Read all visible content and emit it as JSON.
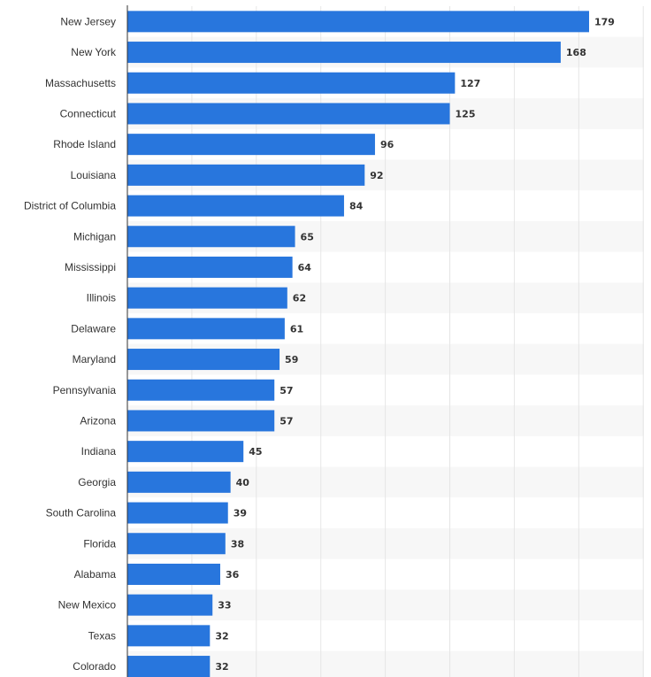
{
  "chart_data": {
    "type": "bar",
    "orientation": "horizontal",
    "title": "",
    "xlabel": "",
    "ylabel": "",
    "xlim": [
      0,
      200
    ],
    "grid": true,
    "categories": [
      "New Jersey",
      "New York",
      "Massachusetts",
      "Connecticut",
      "Rhode Island",
      "Louisiana",
      "District of Columbia",
      "Michigan",
      "Mississippi",
      "Illinois",
      "Delaware",
      "Maryland",
      "Pennsylvania",
      "Arizona",
      "Indiana",
      "Georgia",
      "South Carolina",
      "Florida",
      "Alabama",
      "New Mexico",
      "Texas",
      "Colorado"
    ],
    "values": [
      179,
      168,
      127,
      125,
      96,
      92,
      84,
      65,
      64,
      62,
      61,
      59,
      57,
      57,
      45,
      40,
      39,
      38,
      36,
      33,
      32,
      32
    ],
    "value_labels": [
      "179",
      "168",
      "127",
      "125",
      "96",
      "92",
      "84",
      "65",
      "64",
      "62",
      "61",
      "59",
      "57",
      "57",
      "45",
      "40",
      "39",
      "38",
      "36",
      "33",
      "32",
      "32"
    ],
    "colors": {
      "bar": "#2876dd",
      "band": "#f7f7f7",
      "grid": "#e6e6e6",
      "axis": "#333333",
      "text": "#333333"
    }
  }
}
